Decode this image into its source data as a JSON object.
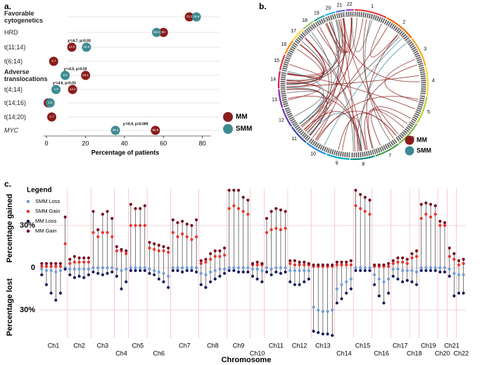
{
  "panel_labels": [
    "a.",
    "b.",
    "c."
  ],
  "chart_data": [
    {
      "type": "dot",
      "categories": [
        "Favorable cytogenetics",
        "HRD",
        "t(11;14)",
        "t(6;14)",
        "Adverse translocations",
        "t(4;14)",
        "t(14;16)",
        "t(14;20)",
        "MYC"
      ],
      "series": [
        {
          "name": "MM",
          "color": "#8b1c1c",
          "values": [
            73.3,
            60,
            13.0,
            3.7,
            20.1,
            13.4,
            0.9,
            2.7,
            55.9
          ],
          "value_labels": [
            "73.3",
            "60",
            "13.0",
            "3.7",
            "20.1",
            "13.4",
            "0.9",
            "2.7",
            "55.9"
          ]
        },
        {
          "name": "SMM",
          "color": "#3e8a93",
          "values": [
            76.9,
            56.5,
            20.5,
            null,
            9.6,
            4.9,
            1.9,
            null,
            35.4
          ],
          "value_labels": [
            "76.9",
            "56.5",
            "20.5",
            null,
            "9.6",
            "4.9",
            "1.9",
            null,
            "35.4"
          ]
        }
      ],
      "annotations": [
        {
          "text": "χ²=4.7, p=0.03",
          "category": 2
        },
        {
          "text": "χ²=4.5, p=0.03",
          "category": 4
        },
        {
          "text": "χ²=4.6, p=0.03",
          "category": 5
        },
        {
          "text": "χ²=6.9, p=0.009",
          "category": 8
        }
      ],
      "xlabel": "Percentage of patients",
      "xlim": [
        0,
        84
      ],
      "xticks": [
        0,
        20,
        40,
        60,
        80
      ]
    },
    {
      "type": "circos",
      "chromosomes": [
        "1",
        "2",
        "3",
        "4",
        "5",
        "6",
        "7",
        "8",
        "9",
        "10",
        "11",
        "12",
        "13",
        "14",
        "15",
        "16",
        "17",
        "18",
        "19",
        "20",
        "21",
        "22"
      ],
      "series": [
        {
          "name": "MM",
          "color": "#8b1c1c"
        },
        {
          "name": "SMM",
          "color": "#3e8a93"
        }
      ]
    },
    {
      "type": "lollipop",
      "legend_title": "Legend",
      "xlabel": "Chromosome",
      "ylabel_top": "Percentage gained",
      "ylabel_bottom": "Percentage lost",
      "ylim": [
        -50,
        56
      ],
      "yticks": [
        {
          "value": -30,
          "label": "30%"
        },
        0,
        {
          "value": 30,
          "label": "30%"
        }
      ],
      "series": [
        {
          "name": "SMM Loss",
          "color": "#6f9fdb"
        },
        {
          "name": "SMM Gain",
          "color": "#e8352e"
        },
        {
          "name": "MM Loss",
          "color": "#1c1f5e"
        },
        {
          "name": "MM Gain",
          "color": "#7a1020"
        }
      ],
      "groups": [
        {
          "label": "Ch1",
          "values": [
            [
              -1,
              -2,
              -2,
              -3,
              -2,
              0
            ],
            [
              1,
              1,
              1,
              1,
              1,
              17
            ],
            [
              -5,
              -12,
              -18,
              -23,
              -18,
              -1
            ],
            [
              3,
              3,
              3,
              3,
              3,
              36
            ]
          ]
        },
        {
          "label": "Ch2",
          "values": [
            [
              -1,
              -1,
              -1,
              -1,
              -1
            ],
            [
              3,
              4,
              4,
              4,
              4
            ],
            [
              -5,
              -7,
              -6,
              -7,
              -5
            ],
            [
              6,
              8,
              7,
              7,
              7
            ]
          ]
        },
        {
          "label": "Ch3",
          "values": [
            [
              0,
              0,
              0,
              0,
              0
            ],
            [
              25,
              22,
              25,
              25,
              22
            ],
            [
              -3,
              -4,
              -5,
              -4,
              -3
            ],
            [
              40,
              27,
              38,
              40,
              35
            ]
          ]
        },
        {
          "label": "Ch4",
          "values": [
            [
              -1,
              -2,
              -1
            ],
            [
              12,
              12,
              10
            ],
            [
              -6,
              -15,
              -10
            ],
            [
              15,
              13,
              12
            ]
          ]
        },
        {
          "label": "Ch5",
          "values": [
            [
              0,
              0,
              0,
              0
            ],
            [
              30,
              30,
              30,
              30
            ],
            [
              -2,
              -2,
              -2,
              -2
            ],
            [
              45,
              42,
              42,
              44
            ]
          ]
        },
        {
          "label": "Ch6",
          "values": [
            [
              -1,
              -2,
              -3,
              -4,
              -6
            ],
            [
              14,
              13,
              12,
              12,
              11
            ],
            [
              -4,
              -5,
              -8,
              -10,
              -14
            ],
            [
              18,
              17,
              16,
              15,
              14
            ]
          ]
        },
        {
          "label": "Ch7",
          "values": [
            [
              0,
              0,
              0,
              0,
              0,
              0
            ],
            [
              25,
              22,
              24,
              22,
              20,
              22
            ],
            [
              -2,
              -2,
              -3,
              -2,
              -2,
              -3
            ],
            [
              34,
              32,
              33,
              31,
              30,
              34
            ]
          ]
        },
        {
          "label": "Ch8",
          "values": [
            [
              -4,
              -5,
              -3,
              -2,
              -1,
              -1
            ],
            [
              3,
              4,
              6,
              8,
              8,
              9
            ],
            [
              -12,
              -14,
              -10,
              -8,
              -6,
              -4
            ],
            [
              5,
              6,
              10,
              12,
              12,
              14
            ]
          ]
        },
        {
          "label": "Ch9",
          "values": [
            [
              0,
              0,
              0,
              0,
              0
            ],
            [
              42,
              44,
              42,
              40,
              38
            ],
            [
              -2,
              -2,
              -3,
              -3,
              -3
            ],
            [
              55,
              55,
              55,
              50,
              48
            ]
          ]
        },
        {
          "label": "Ch10",
          "values": [
            [
              -1,
              -1,
              -2
            ],
            [
              2,
              2,
              2
            ],
            [
              -6,
              -8,
              -10
            ],
            [
              3,
              4,
              3
            ]
          ]
        },
        {
          "label": "Ch11",
          "values": [
            [
              0,
              -1,
              0,
              0,
              0
            ],
            [
              25,
              27,
              28,
              27,
              28
            ],
            [
              -3,
              -5,
              -3,
              -4,
              -3
            ],
            [
              35,
              40,
              42,
              41,
              40
            ]
          ]
        },
        {
          "label": "Ch12",
          "values": [
            [
              -2,
              -2,
              -2,
              -2,
              -2
            ],
            [
              3,
              2,
              2,
              2,
              2
            ],
            [
              -10,
              -12,
              -12,
              -10,
              -8
            ],
            [
              5,
              5,
              4,
              4,
              3
            ]
          ]
        },
        {
          "label": "Ch13",
          "values": [
            [
              -28,
              -30,
              -31,
              -31,
              -30
            ],
            [
              1,
              1,
              1,
              1,
              1
            ],
            [
              -45,
              -46,
              -47,
              -47,
              -48
            ],
            [
              2,
              2,
              2,
              2,
              2
            ]
          ]
        },
        {
          "label": "Ch14",
          "values": [
            [
              -15,
              -12,
              -10,
              -8
            ],
            [
              2,
              2,
              2,
              2
            ],
            [
              -25,
              -22,
              -18,
              -15
            ],
            [
              4,
              4,
              4,
              5
            ]
          ]
        },
        {
          "label": "Ch15",
          "values": [
            [
              0,
              0,
              0,
              0
            ],
            [
              44,
              42,
              40,
              38
            ],
            [
              -2,
              -2,
              -2,
              -2
            ],
            [
              55,
              52,
              50,
              48
            ]
          ]
        },
        {
          "label": "Ch16",
          "values": [
            [
              -5,
              -8,
              -10,
              -8
            ],
            [
              1,
              1,
              1,
              1
            ],
            [
              -12,
              -20,
              -25,
              -18
            ],
            [
              2,
              2,
              2,
              3
            ]
          ]
        },
        {
          "label": "Ch17",
          "values": [
            [
              -1,
              -1,
              -2,
              -2
            ],
            [
              3,
              4,
              4,
              3
            ],
            [
              -6,
              -8,
              -10,
              -9
            ],
            [
              5,
              7,
              7,
              6
            ]
          ]
        },
        {
          "label": "Ch18",
          "values": [
            [
              -2,
              -3
            ],
            [
              7,
              8
            ],
            [
              -10,
              -12
            ],
            [
              10,
              12
            ]
          ]
        },
        {
          "label": "Ch19",
          "values": [
            [
              0,
              0,
              0,
              0
            ],
            [
              35,
              38,
              36,
              38
            ],
            [
              -2,
              -2,
              -2,
              -2
            ],
            [
              45,
              46,
              45,
              44
            ]
          ]
        },
        {
          "label": "Ch20",
          "values": [
            [
              0,
              0
            ],
            [
              30,
              30
            ],
            [
              -3,
              -3
            ],
            [
              33,
              32
            ]
          ]
        },
        {
          "label": "Ch21",
          "values": [
            [
              -1,
              -4
            ],
            [
              8,
              6
            ],
            [
              -6,
              -20
            ],
            [
              14,
              10
            ]
          ]
        },
        {
          "label": "Ch22",
          "values": [
            [
              -5,
              -5
            ],
            [
              2,
              3
            ],
            [
              -18,
              -18
            ],
            [
              5,
              6
            ]
          ]
        }
      ]
    }
  ]
}
